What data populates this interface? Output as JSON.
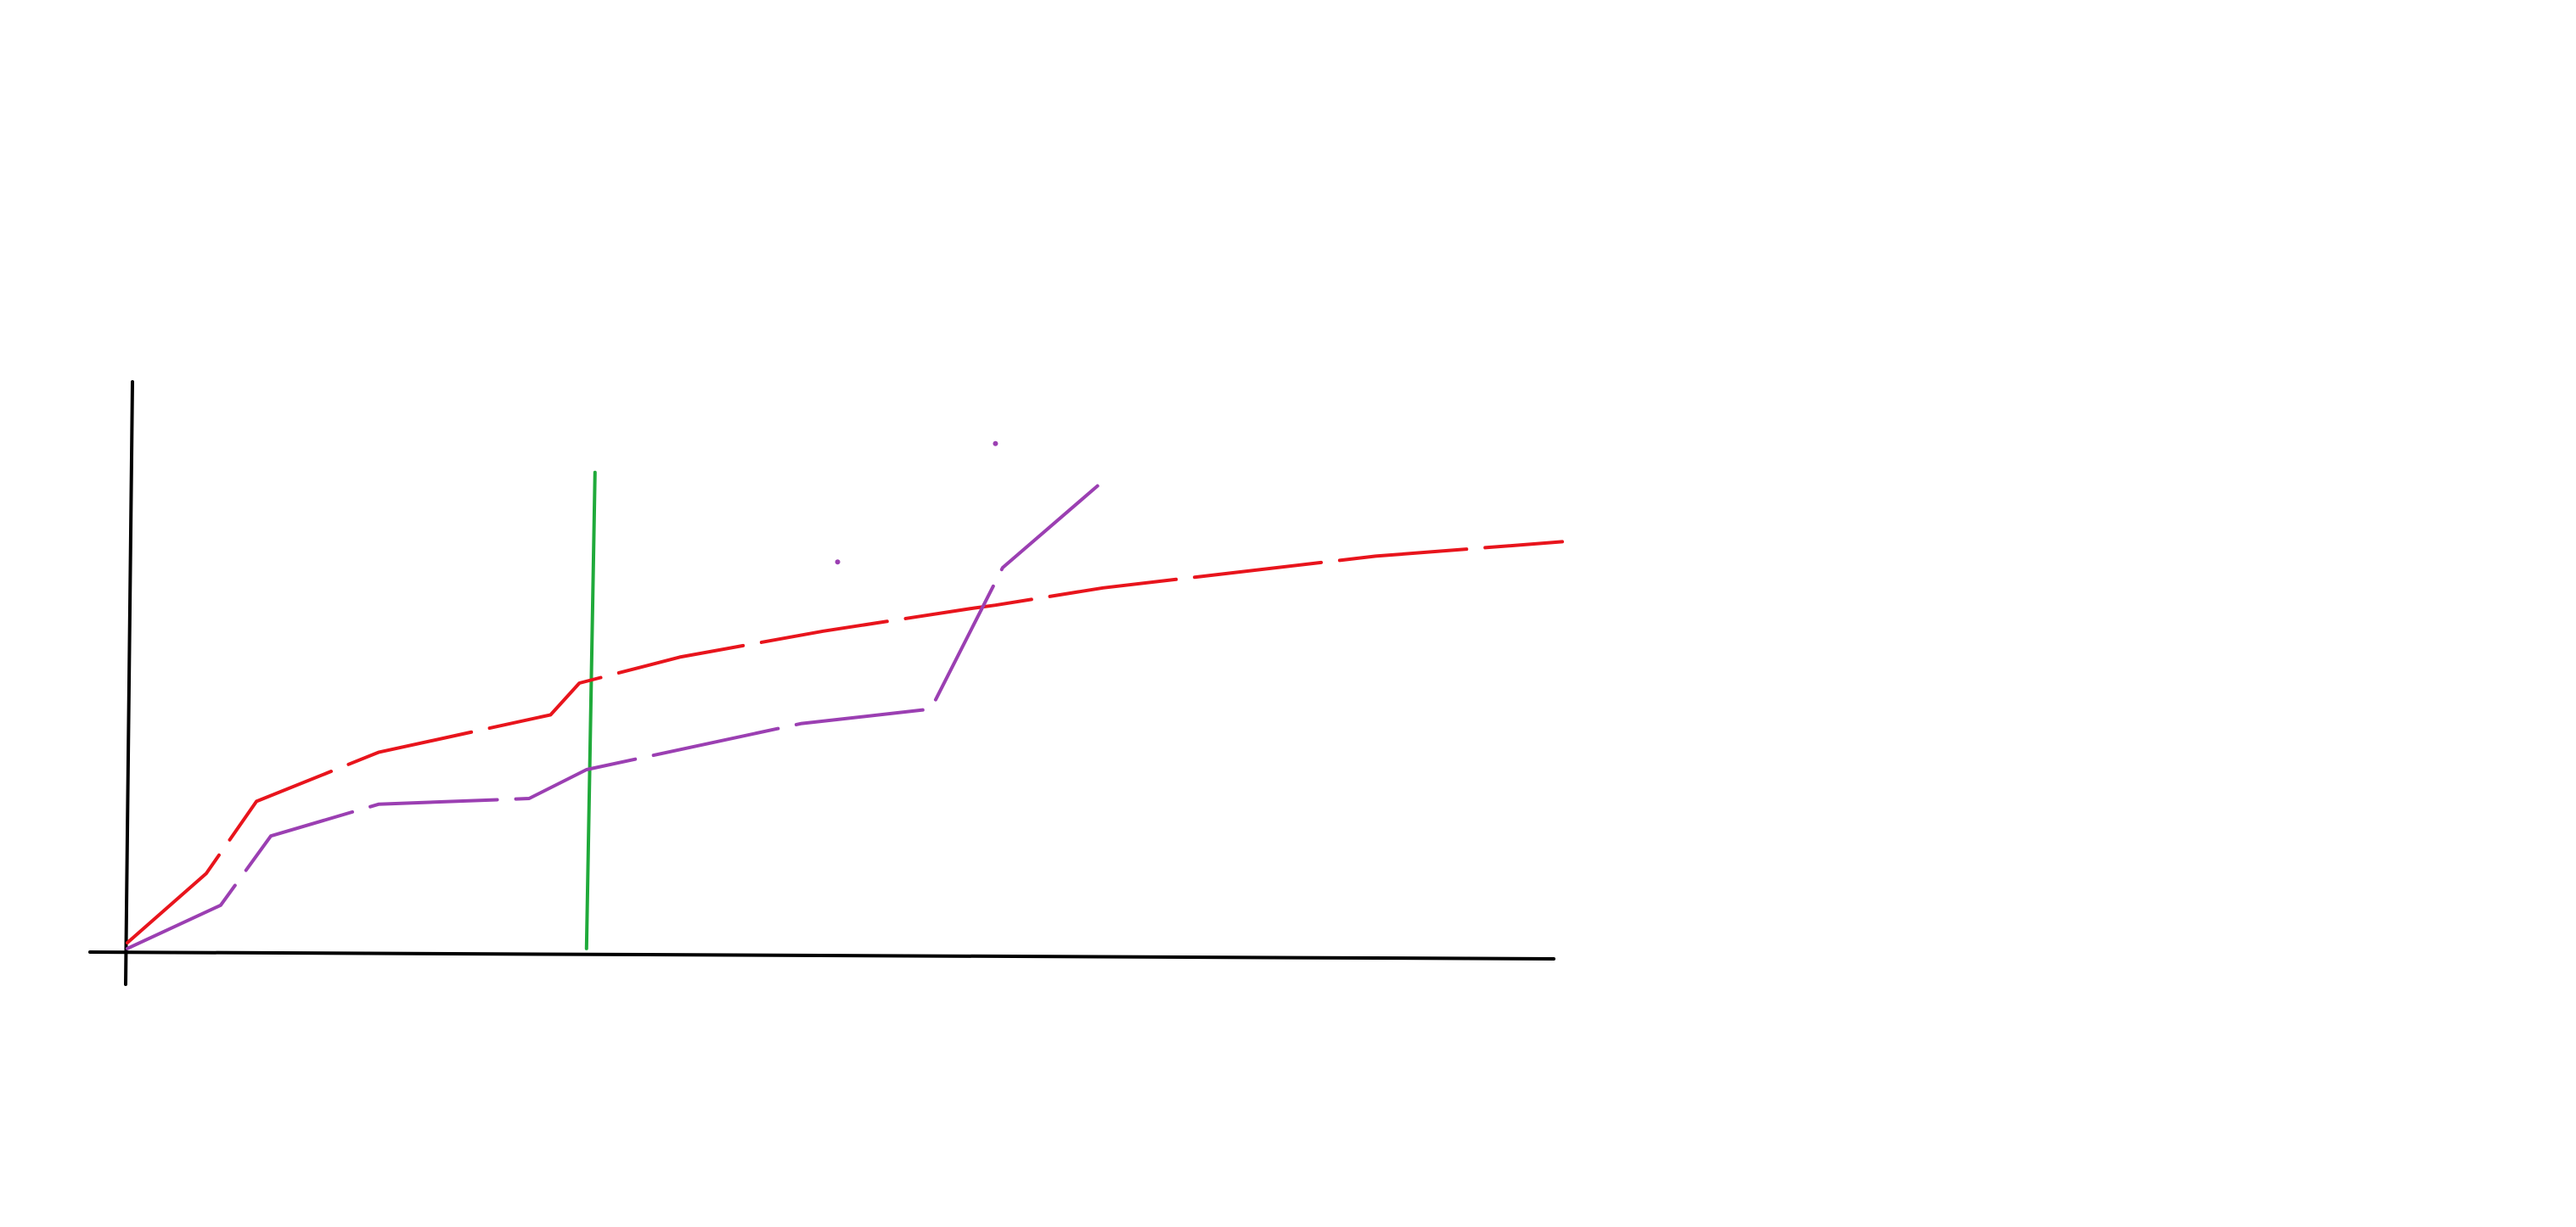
{
  "chart_data": {
    "type": "line",
    "title": "",
    "xlabel": "",
    "ylabel": "",
    "xlim": [
      0,
      100
    ],
    "ylim": [
      0,
      100
    ],
    "grid": false,
    "legend": "none",
    "series": [
      {
        "color": "#e8141c",
        "style": "dashed",
        "x": [
          0,
          5.5,
          9.0,
          17.5,
          29.5,
          31.5,
          38.5,
          48.5,
          59.0,
          60.5,
          68.0,
          87.0,
          100.0
        ],
        "y": [
          2.5,
          14.5,
          27.0,
          35.5,
          42.0,
          47.5,
          52.0,
          56.5,
          60.5,
          61.0,
          64.0,
          69.5,
          72.0
        ]
      },
      {
        "color": "#9b3fb2",
        "style": "dashed",
        "x": [
          0,
          6.5,
          10.0,
          17.5,
          28.0,
          32.0,
          47.0,
          56.0,
          61.0,
          68.0
        ],
        "y": [
          1.5,
          9.0,
          21.0,
          26.5,
          27.5,
          32.5,
          40.5,
          43.0,
          67.5,
          82.5
        ]
      }
    ],
    "markers": [
      {
        "color": "#9b3fb2",
        "x": 49.5,
        "y": 68.5
      },
      {
        "color": "#9b3fb2",
        "x": 60.5,
        "y": 89.0
      }
    ],
    "vlines": [
      {
        "color": "#1faa3a",
        "x": 32.0,
        "y": [
          1.5,
          84.0
        ]
      }
    ],
    "axis_color": "#000000"
  }
}
